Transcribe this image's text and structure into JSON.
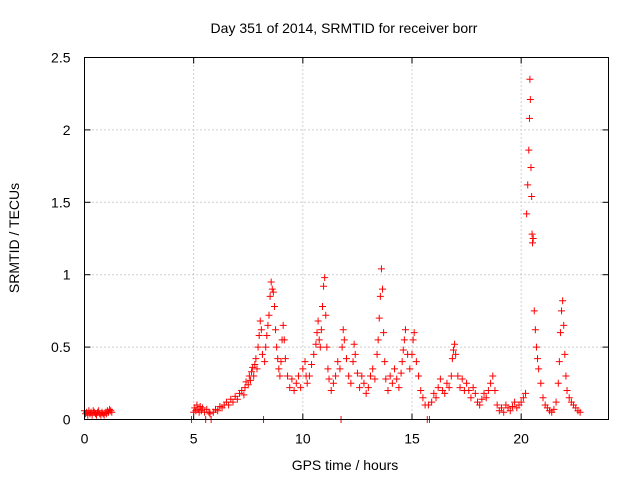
{
  "chart_data": {
    "type": "scatter",
    "title": "Day 351 of 2014, SRMTID for receiver borr",
    "xlabel": "GPS time / hours",
    "ylabel": "SRMTID / TECUs",
    "xlim": [
      0,
      24
    ],
    "ylim": [
      0,
      2.5
    ],
    "xticks": [
      0,
      5,
      10,
      15,
      20
    ],
    "yticks": [
      0,
      0.5,
      1,
      1.5,
      2,
      2.5
    ],
    "xtick_labels": [
      "0",
      "5",
      "10",
      "15",
      "20"
    ],
    "ytick_labels": [
      "0",
      "0.5",
      "1",
      "1.5",
      "2",
      "2.5"
    ],
    "grid": true,
    "marker": "+",
    "color": "#ff0000",
    "series": [
      {
        "name": "SRMTID",
        "points": [
          [
            0.0,
            0.06
          ],
          [
            0.05,
            0.04
          ],
          [
            0.1,
            0.05
          ],
          [
            0.15,
            0.03
          ],
          [
            0.2,
            0.06
          ],
          [
            0.25,
            0.04
          ],
          [
            0.3,
            0.05
          ],
          [
            0.35,
            0.03
          ],
          [
            0.4,
            0.06
          ],
          [
            0.45,
            0.05
          ],
          [
            0.5,
            0.04
          ],
          [
            0.55,
            0.03
          ],
          [
            0.6,
            0.05
          ],
          [
            0.65,
            0.06
          ],
          [
            0.7,
            0.04
          ],
          [
            0.75,
            0.03
          ],
          [
            0.8,
            0.05
          ],
          [
            0.85,
            0.04
          ],
          [
            0.9,
            0.03
          ],
          [
            0.95,
            0.05
          ],
          [
            1.0,
            0.04
          ],
          [
            1.05,
            0.06
          ],
          [
            1.1,
            0.05
          ],
          [
            1.15,
            0.07
          ],
          [
            1.2,
            0.06
          ],
          [
            1.25,
            0.05
          ],
          [
            4.9,
            0.0
          ],
          [
            5.0,
            0.05
          ],
          [
            5.05,
            0.08
          ],
          [
            5.1,
            0.06
          ],
          [
            5.15,
            0.1
          ],
          [
            5.2,
            0.07
          ],
          [
            5.25,
            0.05
          ],
          [
            5.3,
            0.09
          ],
          [
            5.35,
            0.06
          ],
          [
            5.4,
            0.08
          ],
          [
            5.5,
            0.05
          ],
          [
            5.55,
            0.0
          ],
          [
            5.6,
            0.07
          ],
          [
            5.7,
            0.05
          ],
          [
            5.75,
            0.04
          ],
          [
            5.8,
            0.0
          ],
          [
            5.9,
            0.05
          ],
          [
            6.0,
            0.07
          ],
          [
            6.1,
            0.06
          ],
          [
            6.2,
            0.09
          ],
          [
            6.3,
            0.08
          ],
          [
            6.4,
            0.1
          ],
          [
            6.5,
            0.12
          ],
          [
            6.6,
            0.1
          ],
          [
            6.7,
            0.14
          ],
          [
            6.8,
            0.12
          ],
          [
            6.9,
            0.16
          ],
          [
            7.0,
            0.14
          ],
          [
            7.1,
            0.18
          ],
          [
            7.2,
            0.2
          ],
          [
            7.3,
            0.17
          ],
          [
            7.35,
            0.22
          ],
          [
            7.4,
            0.26
          ],
          [
            7.5,
            0.24
          ],
          [
            7.55,
            0.3
          ],
          [
            7.6,
            0.27
          ],
          [
            7.65,
            0.33
          ],
          [
            7.7,
            0.36
          ],
          [
            7.75,
            0.3
          ],
          [
            7.8,
            0.38
          ],
          [
            7.85,
            0.42
          ],
          [
            7.9,
            0.35
          ],
          [
            7.95,
            0.5
          ],
          [
            8.0,
            0.58
          ],
          [
            8.05,
            0.68
          ],
          [
            8.1,
            0.62
          ],
          [
            8.15,
            0.45
          ],
          [
            8.2,
            0.0
          ],
          [
            8.25,
            0.4
          ],
          [
            8.3,
            0.5
          ],
          [
            8.35,
            0.58
          ],
          [
            8.4,
            0.65
          ],
          [
            8.45,
            0.72
          ],
          [
            8.5,
            0.85
          ],
          [
            8.55,
            0.95
          ],
          [
            8.6,
            0.9
          ],
          [
            8.65,
            0.88
          ],
          [
            8.7,
            0.78
          ],
          [
            8.75,
            0.62
          ],
          [
            8.8,
            0.5
          ],
          [
            8.85,
            0.42
          ],
          [
            8.9,
            0.35
          ],
          [
            8.95,
            0.3
          ],
          [
            9.0,
            0.4
          ],
          [
            9.05,
            0.55
          ],
          [
            9.1,
            0.65
          ],
          [
            9.15,
            0.55
          ],
          [
            9.2,
            0.42
          ],
          [
            9.3,
            0.3
          ],
          [
            9.4,
            0.22
          ],
          [
            9.5,
            0.28
          ],
          [
            9.6,
            0.2
          ],
          [
            9.7,
            0.25
          ],
          [
            9.8,
            0.3
          ],
          [
            9.9,
            0.22
          ],
          [
            10.0,
            0.35
          ],
          [
            10.1,
            0.4
          ],
          [
            10.15,
            0.3
          ],
          [
            10.2,
            0.25
          ],
          [
            10.3,
            0.3
          ],
          [
            10.4,
            0.38
          ],
          [
            10.5,
            0.45
          ],
          [
            10.6,
            0.52
          ],
          [
            10.65,
            0.6
          ],
          [
            10.7,
            0.68
          ],
          [
            10.75,
            0.55
          ],
          [
            10.8,
            0.5
          ],
          [
            10.85,
            0.62
          ],
          [
            10.9,
            0.78
          ],
          [
            10.95,
            0.92
          ],
          [
            11.0,
            0.98
          ],
          [
            11.05,
            0.72
          ],
          [
            11.1,
            0.5
          ],
          [
            11.15,
            0.35
          ],
          [
            11.2,
            0.28
          ],
          [
            11.3,
            0.2
          ],
          [
            11.4,
            0.25
          ],
          [
            11.5,
            0.3
          ],
          [
            11.6,
            0.4
          ],
          [
            11.7,
            0.35
          ],
          [
            11.75,
            0.0
          ],
          [
            11.8,
            0.5
          ],
          [
            11.85,
            0.62
          ],
          [
            11.9,
            0.55
          ],
          [
            12.0,
            0.42
          ],
          [
            12.1,
            0.3
          ],
          [
            12.2,
            0.25
          ],
          [
            12.3,
            0.4
          ],
          [
            12.35,
            0.52
          ],
          [
            12.4,
            0.45
          ],
          [
            12.5,
            0.32
          ],
          [
            12.6,
            0.22
          ],
          [
            12.7,
            0.3
          ],
          [
            12.8,
            0.25
          ],
          [
            12.9,
            0.18
          ],
          [
            13.0,
            0.22
          ],
          [
            13.1,
            0.3
          ],
          [
            13.2,
            0.35
          ],
          [
            13.3,
            0.28
          ],
          [
            13.4,
            0.45
          ],
          [
            13.45,
            0.55
          ],
          [
            13.5,
            0.7
          ],
          [
            13.55,
            0.85
          ],
          [
            13.6,
            1.04
          ],
          [
            13.65,
            0.9
          ],
          [
            13.7,
            0.6
          ],
          [
            13.75,
            0.4
          ],
          [
            13.8,
            0.28
          ],
          [
            13.9,
            0.2
          ],
          [
            14.0,
            0.3
          ],
          [
            14.1,
            0.25
          ],
          [
            14.2,
            0.35
          ],
          [
            14.3,
            0.28
          ],
          [
            14.4,
            0.22
          ],
          [
            14.5,
            0.32
          ],
          [
            14.55,
            0.4
          ],
          [
            14.6,
            0.48
          ],
          [
            14.65,
            0.55
          ],
          [
            14.7,
            0.62
          ],
          [
            14.8,
            0.45
          ],
          [
            14.9,
            0.35
          ],
          [
            15.0,
            0.45
          ],
          [
            15.05,
            0.55
          ],
          [
            15.1,
            0.6
          ],
          [
            15.2,
            0.4
          ],
          [
            15.3,
            0.3
          ],
          [
            15.4,
            0.2
          ],
          [
            15.5,
            0.15
          ],
          [
            15.6,
            0.1
          ],
          [
            15.7,
            0.0
          ],
          [
            15.75,
            0.1
          ],
          [
            15.8,
            0.0
          ],
          [
            15.9,
            0.12
          ],
          [
            16.0,
            0.18
          ],
          [
            16.1,
            0.15
          ],
          [
            16.2,
            0.22
          ],
          [
            16.3,
            0.28
          ],
          [
            16.4,
            0.2
          ],
          [
            16.5,
            0.18
          ],
          [
            16.6,
            0.25
          ],
          [
            16.7,
            0.22
          ],
          [
            16.8,
            0.3
          ],
          [
            16.85,
            0.42
          ],
          [
            16.9,
            0.48
          ],
          [
            16.95,
            0.52
          ],
          [
            17.0,
            0.45
          ],
          [
            17.1,
            0.3
          ],
          [
            17.2,
            0.22
          ],
          [
            17.3,
            0.28
          ],
          [
            17.4,
            0.2
          ],
          [
            17.5,
            0.25
          ],
          [
            17.6,
            0.2
          ],
          [
            17.7,
            0.15
          ],
          [
            17.8,
            0.22
          ],
          [
            17.9,
            0.18
          ],
          [
            18.0,
            0.12
          ],
          [
            18.1,
            0.1
          ],
          [
            18.2,
            0.14
          ],
          [
            18.3,
            0.18
          ],
          [
            18.4,
            0.15
          ],
          [
            18.5,
            0.2
          ],
          [
            18.6,
            0.25
          ],
          [
            18.7,
            0.3
          ],
          [
            18.8,
            0.2
          ],
          [
            18.9,
            0.1
          ],
          [
            19.0,
            0.06
          ],
          [
            19.1,
            0.08
          ],
          [
            19.2,
            0.05
          ],
          [
            19.3,
            0.1
          ],
          [
            19.4,
            0.08
          ],
          [
            19.5,
            0.06
          ],
          [
            19.6,
            0.09
          ],
          [
            19.7,
            0.12
          ],
          [
            19.8,
            0.08
          ],
          [
            19.9,
            0.1
          ],
          [
            20.0,
            0.12
          ],
          [
            20.1,
            0.15
          ],
          [
            20.2,
            0.18
          ],
          [
            20.25,
            1.42
          ],
          [
            20.3,
            1.62
          ],
          [
            20.35,
            1.86
          ],
          [
            20.38,
            2.08
          ],
          [
            20.4,
            2.35
          ],
          [
            20.42,
            2.21
          ],
          [
            20.45,
            1.74
          ],
          [
            20.48,
            1.54
          ],
          [
            20.5,
            1.28
          ],
          [
            20.52,
            1.22
          ],
          [
            20.55,
            1.25
          ],
          [
            20.6,
            0.75
          ],
          [
            20.65,
            0.62
          ],
          [
            20.7,
            0.5
          ],
          [
            20.75,
            0.42
          ],
          [
            20.8,
            0.35
          ],
          [
            20.9,
            0.25
          ],
          [
            21.0,
            0.15
          ],
          [
            21.1,
            0.1
          ],
          [
            21.2,
            0.08
          ],
          [
            21.3,
            0.06
          ],
          [
            21.4,
            0.05
          ],
          [
            21.5,
            0.07
          ],
          [
            21.6,
            0.12
          ],
          [
            21.7,
            0.25
          ],
          [
            21.75,
            0.4
          ],
          [
            21.8,
            0.6
          ],
          [
            21.85,
            0.75
          ],
          [
            21.9,
            0.82
          ],
          [
            21.95,
            0.65
          ],
          [
            22.0,
            0.45
          ],
          [
            22.05,
            0.3
          ],
          [
            22.1,
            0.2
          ],
          [
            22.2,
            0.15
          ],
          [
            22.3,
            0.12
          ],
          [
            22.4,
            0.1
          ],
          [
            22.5,
            0.08
          ],
          [
            22.6,
            0.06
          ],
          [
            22.7,
            0.05
          ]
        ]
      }
    ]
  }
}
